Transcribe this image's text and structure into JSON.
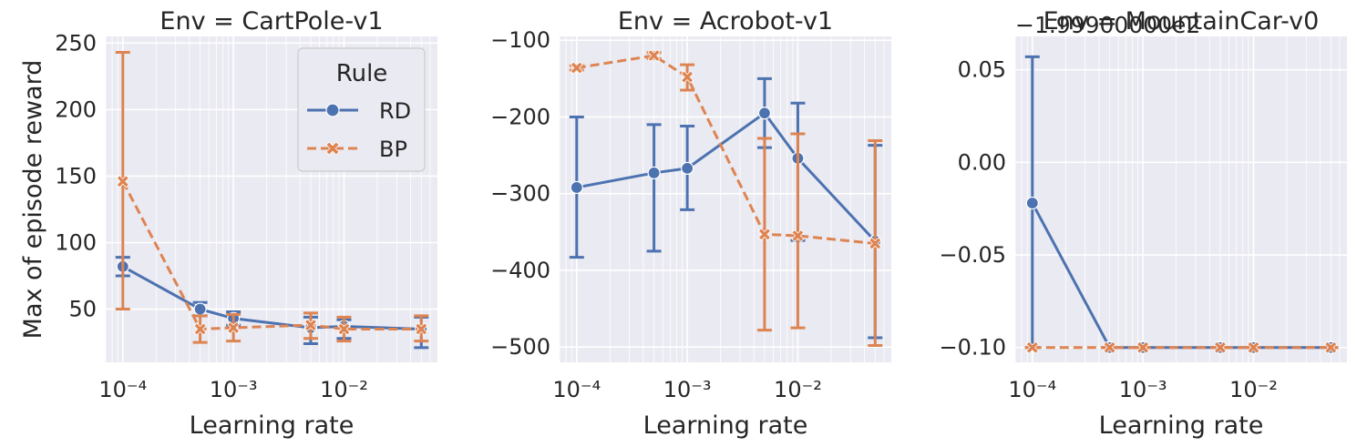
{
  "colors": {
    "rd": "#4C72B0",
    "bp": "#DD8452"
  },
  "legend": {
    "title": "Rule",
    "placement": "top-right",
    "entries": [
      {
        "name": "RD",
        "marker": "circle",
        "linestyle": "solid"
      },
      {
        "name": "BP",
        "marker": "x",
        "linestyle": "dashed"
      }
    ]
  },
  "shared": {
    "xlabel": "Learning rate",
    "ylabel": "Max of episode reward",
    "x_tick_labels": [
      "10⁻⁴",
      "10⁻³",
      "10⁻²"
    ]
  },
  "chart_data": [
    {
      "type": "line",
      "title": "Env = CartPole-v1",
      "xlabel": "Learning rate",
      "ylabel": "Max of episode reward",
      "xscale": "log",
      "x": [
        0.0001,
        0.0005,
        0.001,
        0.005,
        0.01,
        0.05
      ],
      "xlim": [
        7e-05,
        0.07
      ],
      "x_ticks": [
        0.0001,
        0.001,
        0.01
      ],
      "ylim": [
        10,
        255
      ],
      "y_ticks": [
        50,
        100,
        150,
        200,
        250
      ],
      "y_tick_labels": [
        "50",
        "100",
        "150",
        "200",
        "250"
      ],
      "grid": true,
      "series": [
        {
          "name": "RD",
          "values": [
            82,
            50,
            43,
            36,
            37,
            35
          ],
          "err_low": [
            75,
            45,
            38,
            24,
            28,
            21
          ],
          "err_high": [
            89,
            55,
            48,
            44,
            42,
            44
          ]
        },
        {
          "name": "BP",
          "values": [
            146,
            35,
            36,
            38,
            35,
            35
          ],
          "err_low": [
            50,
            25,
            26,
            28,
            26,
            26
          ],
          "err_high": [
            243,
            45,
            46,
            47,
            44,
            45
          ]
        }
      ]
    },
    {
      "type": "line",
      "title": "Env = Acrobot-v1",
      "xlabel": "Learning rate",
      "xscale": "log",
      "x": [
        0.0001,
        0.0005,
        0.001,
        0.005,
        0.01,
        0.05
      ],
      "xlim": [
        7e-05,
        0.07
      ],
      "x_ticks": [
        0.0001,
        0.001,
        0.01
      ],
      "ylim": [
        -520,
        -95
      ],
      "y_ticks": [
        -500,
        -400,
        -300,
        -200,
        -100
      ],
      "y_tick_labels": [
        "−500",
        "−400",
        "−300",
        "−200",
        "−100"
      ],
      "grid": true,
      "series": [
        {
          "name": "RD",
          "values": [
            -292,
            -273,
            -267,
            -195,
            -254,
            -362
          ],
          "err_low": [
            -383,
            -375,
            -321,
            -240,
            -361,
            -488
          ],
          "err_high": [
            -200,
            -210,
            -212,
            -150,
            -182,
            -237
          ]
        },
        {
          "name": "BP",
          "values": [
            -136,
            -120,
            -148,
            -353,
            -355,
            -365
          ],
          "err_low": [
            -139,
            -124,
            -165,
            -478,
            -475,
            -498
          ],
          "err_high": [
            -133,
            -116,
            -132,
            -228,
            -222,
            -231
          ]
        }
      ]
    },
    {
      "type": "line",
      "title": "Env = MountainCar-v0",
      "xlabel": "Learning rate",
      "xscale": "log",
      "x": [
        0.0001,
        0.0005,
        0.001,
        0.005,
        0.01,
        0.05
      ],
      "xlim": [
        7e-05,
        0.07
      ],
      "x_ticks": [
        0.0001,
        0.001,
        0.01
      ],
      "ylim": [
        -0.108,
        0.068
      ],
      "y_ticks": [
        -0.1,
        -0.05,
        0.0,
        0.05
      ],
      "y_tick_labels": [
        "−0.10",
        "−0.05",
        "0.00",
        "0.05"
      ],
      "offset_text": "−1.99900000e2",
      "grid": true,
      "series": [
        {
          "name": "RD",
          "values": [
            -0.022,
            -0.1,
            -0.1,
            -0.1,
            -0.1,
            -0.1
          ],
          "err_low": [
            -0.1,
            -0.1,
            -0.1,
            -0.1,
            -0.1,
            -0.1
          ],
          "err_high": [
            0.057,
            -0.1,
            -0.1,
            -0.1,
            -0.1,
            -0.1
          ]
        },
        {
          "name": "BP",
          "values": [
            -0.1,
            -0.1,
            -0.1,
            -0.1,
            -0.1,
            -0.1
          ],
          "err_low": [
            -0.1,
            -0.1,
            -0.1,
            -0.1,
            -0.1,
            -0.1
          ],
          "err_high": [
            -0.1,
            -0.1,
            -0.1,
            -0.1,
            -0.1,
            -0.1
          ]
        }
      ]
    }
  ]
}
